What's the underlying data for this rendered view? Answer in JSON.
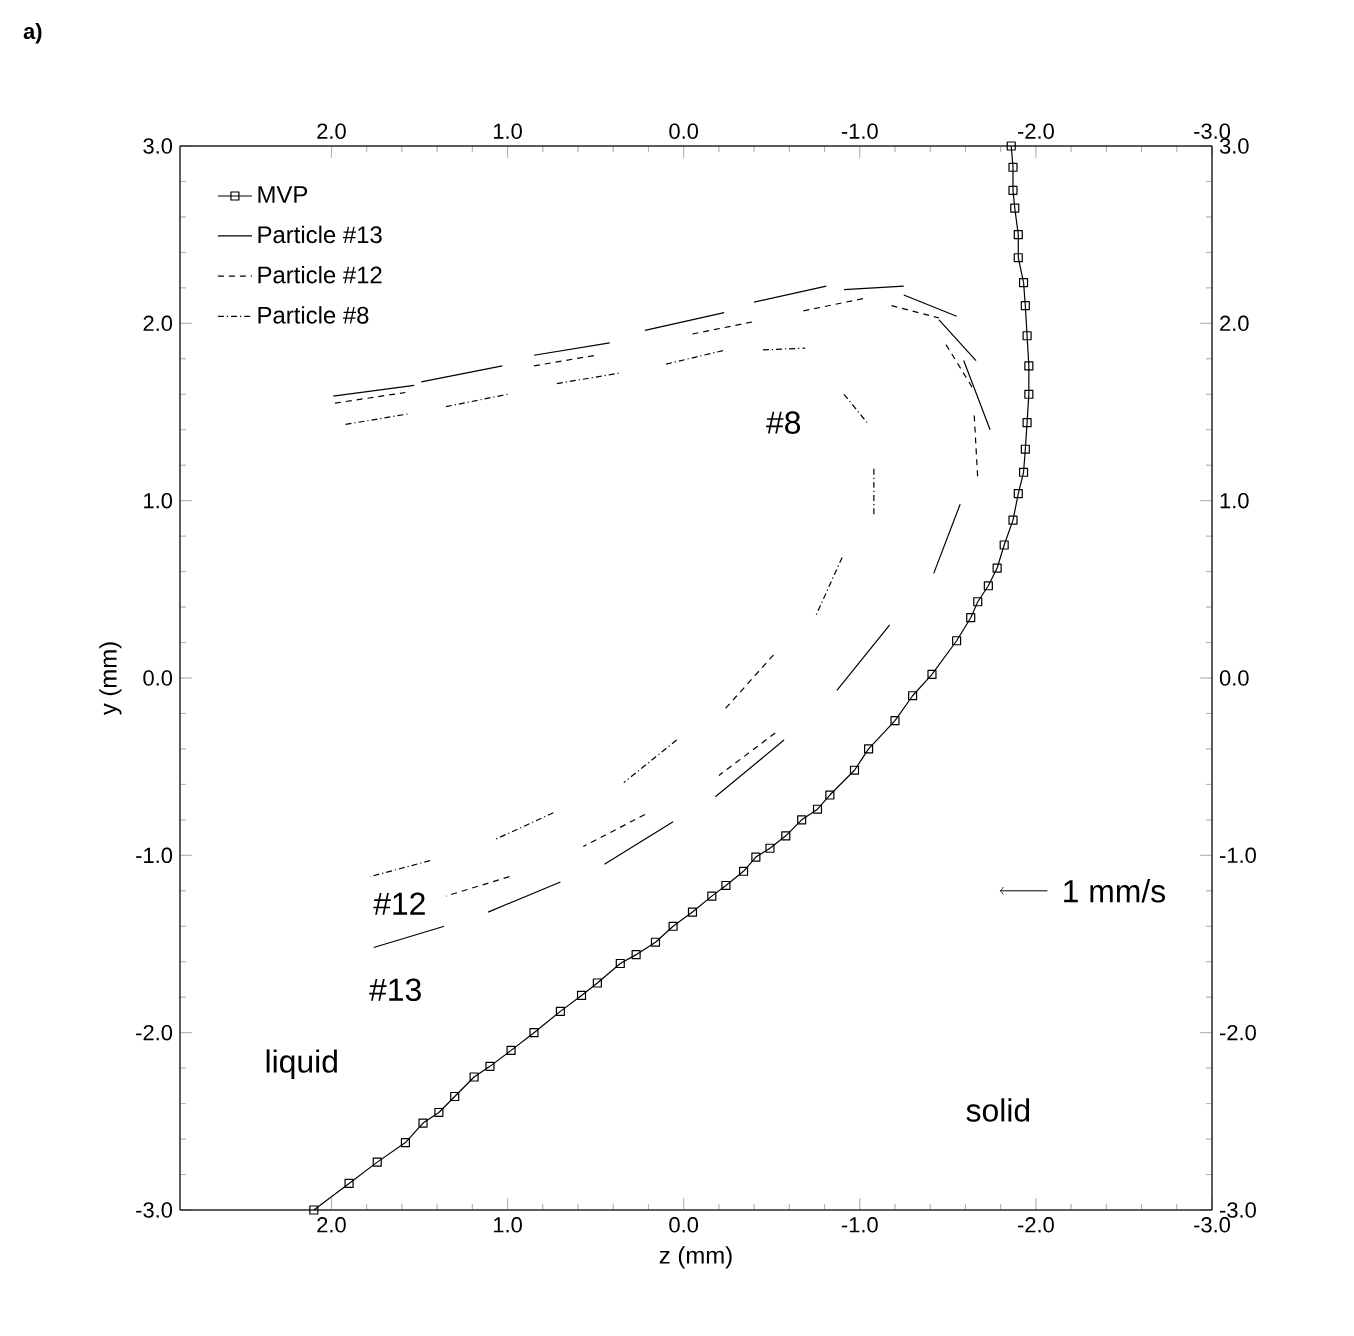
{
  "chart_data": {
    "type": "line",
    "xlabel": "z (mm)",
    "ylabel": "y (mm)",
    "xlim": [
      2.86,
      -3.0
    ],
    "ylim": [
      -3.0,
      3.0
    ],
    "xticks": [
      {
        "value": 2,
        "label": "2.0"
      },
      {
        "value": 1,
        "label": "1.0"
      },
      {
        "value": 0,
        "label": "0.0"
      },
      {
        "value": -1,
        "label": "-1.0"
      },
      {
        "value": -2,
        "label": "-2.0"
      },
      {
        "value": -3,
        "label": "-3.0"
      }
    ],
    "yticks": [
      {
        "value": -3,
        "label": "-3.0"
      },
      {
        "value": -2,
        "label": "-2.0"
      },
      {
        "value": -1,
        "label": "-1.0"
      },
      {
        "value": 0,
        "label": "0.0"
      },
      {
        "value": 1,
        "label": "1.0"
      },
      {
        "value": 2,
        "label": "2.0"
      },
      {
        "value": 3,
        "label": "3.0"
      }
    ],
    "x2lim": [
      2.86,
      -3.0
    ],
    "y2lim": [
      -3.0,
      3.0
    ],
    "x2ticks": [
      {
        "value": 2,
        "label": "2.0"
      },
      {
        "value": 1,
        "label": "1.0"
      },
      {
        "value": 0,
        "label": "0.0"
      },
      {
        "value": -1,
        "label": "-1.0"
      },
      {
        "value": -2,
        "label": "-2.0"
      },
      {
        "value": -3,
        "label": "-3.0"
      }
    ],
    "y2ticks": [
      {
        "value": -3,
        "label": "-3.0"
      },
      {
        "value": -2,
        "label": "-2.0"
      },
      {
        "value": -1,
        "label": "-1.0"
      },
      {
        "value": 0,
        "label": "0.0"
      },
      {
        "value": 1,
        "label": "1.0"
      },
      {
        "value": 2,
        "label": "2.0"
      },
      {
        "value": 3,
        "label": "3.0"
      }
    ],
    "legend": "top left",
    "grid": false,
    "series": [
      {
        "name": "MVP",
        "color": "#000000",
        "marker": "square",
        "line_style": "solid",
        "x": [
          -1.86,
          -1.87,
          -1.87,
          -1.88,
          -1.9,
          -1.9,
          -1.93,
          -1.94,
          -1.95,
          -1.96,
          -1.96,
          -1.95,
          -1.94,
          -1.93,
          -1.9,
          -1.87,
          -1.82,
          -1.78,
          -1.73,
          -1.67,
          -1.63,
          -1.55,
          -1.41,
          -1.3,
          -1.2,
          -1.05,
          -0.97,
          -0.83,
          -0.76,
          -0.67,
          -0.58,
          -0.49,
          -0.41,
          -0.34,
          -0.24,
          -0.16,
          -0.05,
          0.06,
          0.16,
          0.27,
          0.36,
          0.49,
          0.58,
          0.7,
          0.85,
          0.98,
          1.1,
          1.19,
          1.3,
          1.39,
          1.48,
          1.58,
          1.74,
          1.9,
          2.1
        ],
        "values": [
          3.0,
          2.88,
          2.75,
          2.65,
          2.5,
          2.37,
          2.23,
          2.1,
          1.93,
          1.76,
          1.6,
          1.44,
          1.29,
          1.16,
          1.04,
          0.89,
          0.75,
          0.62,
          0.52,
          0.43,
          0.34,
          0.21,
          0.02,
          -0.1,
          -0.24,
          -0.4,
          -0.52,
          -0.66,
          -0.74,
          -0.8,
          -0.89,
          -0.96,
          -1.01,
          -1.09,
          -1.17,
          -1.23,
          -1.32,
          -1.4,
          -1.49,
          -1.56,
          -1.61,
          -1.72,
          -1.79,
          -1.88,
          -2.0,
          -2.1,
          -2.19,
          -2.25,
          -2.36,
          -2.45,
          -2.51,
          -2.62,
          -2.73,
          -2.85,
          -3.0
        ]
      },
      {
        "name": "Particle #13",
        "color": "#000000",
        "line_style": "solid",
        "x": [
          1.99,
          1.53,
          null,
          1.49,
          1.03,
          null,
          0.85,
          0.42,
          null,
          0.22,
          -0.23,
          null,
          -0.4,
          -0.81,
          null,
          -0.91,
          -1.25,
          null,
          -1.25,
          -1.55,
          null,
          -1.45,
          -1.66,
          null,
          -1.59,
          -1.74,
          null,
          -1.57,
          -1.42,
          null,
          -1.17,
          -0.87,
          null,
          -0.57,
          -0.18,
          null,
          0.06,
          0.45,
          null,
          0.7,
          1.11,
          null,
          1.36,
          1.76
        ],
        "values": [
          1.59,
          1.65,
          null,
          1.67,
          1.76,
          null,
          1.82,
          1.89,
          null,
          1.96,
          2.06,
          null,
          2.12,
          2.21,
          null,
          2.19,
          2.21,
          null,
          2.16,
          2.04,
          null,
          2.02,
          1.79,
          null,
          1.79,
          1.4,
          null,
          0.98,
          0.59,
          null,
          0.3,
          -0.07,
          null,
          -0.35,
          -0.67,
          null,
          -0.81,
          -1.05,
          null,
          -1.15,
          -1.32,
          null,
          -1.4,
          -1.52
        ]
      },
      {
        "name": "Particle #12",
        "color": "#000000",
        "line_style": "dashed",
        "x": [
          1.98,
          1.58,
          null,
          0.85,
          0.5,
          null,
          -0.05,
          -0.4,
          null,
          -0.68,
          -1.02,
          null,
          -1.18,
          -1.45,
          null,
          -1.49,
          -1.65,
          null,
          -1.65,
          -1.67,
          null,
          -0.51,
          -0.23,
          null,
          -0.52,
          -0.2,
          null,
          0.22,
          0.57,
          null,
          0.99,
          1.35
        ],
        "values": [
          1.55,
          1.61,
          null,
          1.76,
          1.82,
          null,
          1.94,
          2.01,
          null,
          2.07,
          2.14,
          null,
          2.1,
          2.03,
          null,
          1.88,
          1.62,
          null,
          1.48,
          1.12,
          null,
          0.13,
          -0.18,
          null,
          -0.31,
          -0.55,
          null,
          -0.77,
          -0.95,
          null,
          -1.12,
          -1.23
        ]
      },
      {
        "name": "Particle #8",
        "color": "#000000",
        "line_style": "dashdot",
        "x": [
          1.92,
          1.56,
          null,
          1.35,
          1.0,
          null,
          0.72,
          0.36,
          null,
          0.1,
          -0.24,
          null,
          -0.45,
          -0.69,
          null,
          -0.91,
          -1.05,
          null,
          -1.08,
          -1.08,
          null,
          -0.9,
          -0.75,
          null,
          0.04,
          0.34,
          null,
          0.74,
          1.07,
          null,
          1.44,
          1.78
        ],
        "values": [
          1.43,
          1.49,
          null,
          1.53,
          1.6,
          null,
          1.66,
          1.72,
          null,
          1.77,
          1.85,
          null,
          1.85,
          1.86,
          null,
          1.6,
          1.43,
          null,
          1.18,
          0.92,
          null,
          0.68,
          0.35,
          null,
          -0.35,
          -0.59,
          null,
          -0.76,
          -0.91,
          null,
          -1.03,
          -1.12
        ]
      }
    ],
    "annotations": [
      "a)",
      "#8",
      "#12",
      "#13",
      "1 mm/s",
      "liquid",
      "solid"
    ]
  }
}
